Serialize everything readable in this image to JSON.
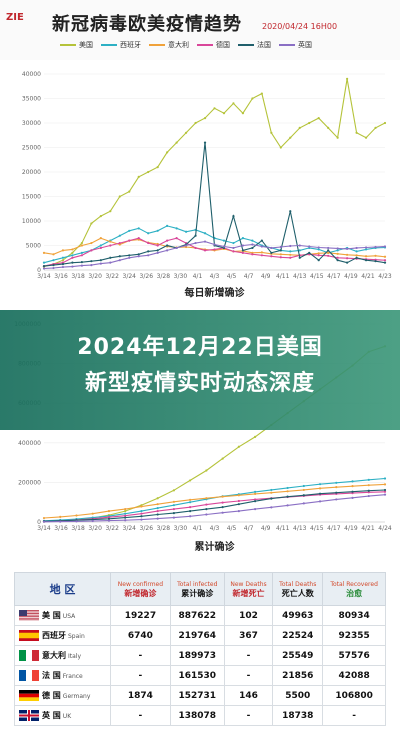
{
  "header": {
    "title": "新冠病毒欧美疫情趋势",
    "date": "2020/04/24 16H00",
    "logo_text": "ZIE"
  },
  "legend": [
    {
      "name": "美国",
      "color": "#b5c33a"
    },
    {
      "name": "西班牙",
      "color": "#2db0c4"
    },
    {
      "name": "意大利",
      "color": "#f0a23a"
    },
    {
      "name": "德国",
      "color": "#d9479a"
    },
    {
      "name": "法国",
      "color": "#1f5f6b"
    },
    {
      "name": "英国",
      "color": "#8a6fc4"
    }
  ],
  "banner": {
    "line1": "2024年12月22日美国",
    "line2": "新型疫情实时动态深度"
  },
  "chart_data": [
    {
      "type": "line",
      "title": "每日新增确诊",
      "ylim": [
        0,
        40000
      ],
      "yticks": [
        "0",
        "5000",
        "10000",
        "15000",
        "20000",
        "25000",
        "30000",
        "35000",
        "40000"
      ],
      "xticks": [
        "3/14",
        "3/16",
        "3/18",
        "3/20",
        "3/22",
        "3/24",
        "3/26",
        "3/28",
        "3/30",
        "4/1",
        "4/3",
        "4/5",
        "4/7",
        "4/9",
        "4/11",
        "4/13",
        "4/15",
        "4/17",
        "4/19",
        "4/21",
        "4/23"
      ],
      "series": [
        {
          "name": "美国",
          "color": "#b5c33a",
          "values": [
            700,
            1200,
            2000,
            3500,
            5500,
            9500,
            11000,
            12000,
            15000,
            16000,
            19000,
            20000,
            21000,
            24000,
            26000,
            28000,
            30000,
            31000,
            33000,
            32000,
            34000,
            32000,
            35000,
            36000,
            28000,
            25000,
            27000,
            29000,
            30000,
            31000,
            29000,
            27000,
            39000,
            28000,
            27000,
            29000,
            30000
          ]
        },
        {
          "name": "西班牙",
          "color": "#2db0c4",
          "values": [
            1500,
            2000,
            2500,
            3000,
            3500,
            4000,
            5000,
            6000,
            7000,
            8000,
            8500,
            7500,
            8000,
            9000,
            8500,
            7800,
            8200,
            7500,
            6500,
            6000,
            5500,
            6500,
            6000,
            5000,
            4500,
            4000,
            3800,
            4000,
            4500,
            4200,
            3500,
            4000,
            4500,
            3800,
            4200,
            4500,
            4600
          ]
        },
        {
          "name": "意大利",
          "color": "#f0a23a",
          "values": [
            3500,
            3200,
            4000,
            4200,
            5000,
            5500,
            6500,
            5800,
            5200,
            6000,
            6200,
            5600,
            5300,
            4800,
            4600,
            4700,
            4500,
            4200,
            4000,
            4300,
            3800,
            3900,
            3500,
            3600,
            3300,
            3200,
            3100,
            3000,
            3200,
            3400,
            3500,
            3300,
            3100,
            3000,
            2800,
            2900,
            2700
          ]
        },
        {
          "name": "德国",
          "color": "#d9479a",
          "values": [
            800,
            1200,
            1500,
            2500,
            3000,
            4000,
            4500,
            5000,
            5500,
            6000,
            6500,
            5500,
            5000,
            6000,
            6500,
            5500,
            4500,
            4000,
            4200,
            4500,
            3800,
            3500,
            3200,
            3000,
            2800,
            2600,
            2500,
            3000,
            3200,
            3000,
            2900,
            2500,
            2400,
            2300,
            2200,
            2100,
            2000
          ]
        },
        {
          "name": "法国",
          "color": "#1f5f6b",
          "values": [
            800,
            1000,
            1200,
            1500,
            1600,
            1800,
            2000,
            2500,
            2800,
            3000,
            3200,
            3800,
            4000,
            5000,
            4500,
            5200,
            7000,
            26000,
            5000,
            4500,
            11000,
            4000,
            4500,
            6000,
            3500,
            4000,
            12000,
            2500,
            3500,
            2000,
            4000,
            2000,
            1500,
            2500,
            2000,
            1800,
            1500
          ]
        },
        {
          "name": "英国",
          "color": "#8a6fc4",
          "values": [
            300,
            400,
            600,
            700,
            900,
            1000,
            1300,
            1500,
            2000,
            2500,
            2800,
            3000,
            3500,
            4000,
            4500,
            5000,
            5500,
            5800,
            5200,
            4800,
            4500,
            5000,
            5200,
            4800,
            4500,
            4700,
            4900,
            5000,
            4800,
            4600,
            4500,
            4400,
            4300,
            4500,
            4600,
            4700,
            4800
          ]
        }
      ]
    },
    {
      "type": "line",
      "title": "累计确诊",
      "ylim": [
        0,
        1000000
      ],
      "yticks": [
        "0",
        "200000",
        "400000",
        "600000",
        "800000",
        "1000000"
      ],
      "xticks": [
        "3/14",
        "3/16",
        "3/18",
        "3/20",
        "3/22",
        "3/24",
        "3/26",
        "3/28",
        "3/30",
        "4/1",
        "4/3",
        "4/5",
        "4/7",
        "4/9",
        "4/11",
        "4/13",
        "4/15",
        "4/17",
        "4/19",
        "4/21",
        "4/24"
      ],
      "series": [
        {
          "name": "美国",
          "color": "#b5c33a",
          "values": [
            2000,
            5000,
            10000,
            20000,
            35000,
            55000,
            85000,
            120000,
            160000,
            210000,
            260000,
            320000,
            380000,
            430000,
            490000,
            550000,
            610000,
            670000,
            730000,
            790000,
            860000,
            887622
          ]
        },
        {
          "name": "西班牙",
          "color": "#2db0c4",
          "values": [
            6000,
            10000,
            15000,
            22000,
            30000,
            42000,
            55000,
            70000,
            85000,
            100000,
            115000,
            130000,
            140000,
            152000,
            162000,
            172000,
            182000,
            191000,
            198000,
            205000,
            213000,
            219764
          ]
        },
        {
          "name": "意大利",
          "color": "#f0a23a",
          "values": [
            20000,
            26000,
            33000,
            42000,
            55000,
            65000,
            78000,
            90000,
            102000,
            112000,
            120000,
            128000,
            135000,
            142000,
            148000,
            155000,
            162000,
            170000,
            176000,
            181000,
            186000,
            189973
          ]
        },
        {
          "name": "德国",
          "color": "#d9479a",
          "values": [
            3000,
            6000,
            10000,
            16000,
            24000,
            32000,
            42000,
            55000,
            65000,
            75000,
            88000,
            98000,
            106000,
            114000,
            120000,
            126000,
            132000,
            138000,
            142000,
            146000,
            150000,
            152731
          ]
        },
        {
          "name": "法国",
          "color": "#1f5f6b",
          "values": [
            4000,
            6000,
            9000,
            12000,
            16000,
            22000,
            29000,
            38000,
            45000,
            55000,
            65000,
            75000,
            90000,
            105000,
            118000,
            128000,
            135000,
            143000,
            148000,
            153000,
            158000,
            161530
          ]
        },
        {
          "name": "英国",
          "color": "#8a6fc4",
          "values": [
            1000,
            2000,
            3000,
            5000,
            7000,
            9000,
            12000,
            17000,
            22000,
            29000,
            38000,
            47000,
            55000,
            65000,
            74000,
            84000,
            94000,
            104000,
            114000,
            122000,
            131000,
            138078
          ]
        }
      ]
    }
  ],
  "table": {
    "headers": [
      {
        "zh": "地 区",
        "en": ""
      },
      {
        "en": "New confirmed",
        "zh": "新增确诊",
        "cls": "red"
      },
      {
        "en": "Total infected",
        "zh": "累计确诊",
        "cls": ""
      },
      {
        "en": "New Deaths",
        "zh": "新增死亡",
        "cls": "red"
      },
      {
        "en": "Total Deaths",
        "zh": "死亡人数",
        "cls": ""
      },
      {
        "en": "Total Recovered",
        "zh": "治愈",
        "cls": "green"
      }
    ],
    "rows": [
      {
        "zh": "美 国",
        "en": "USA",
        "flag": "us",
        "new_confirmed": "19227",
        "total": "887622",
        "new_deaths": "102",
        "deaths": "49963",
        "recovered": "80934"
      },
      {
        "zh": "西班牙",
        "en": "Spain",
        "flag": "es",
        "new_confirmed": "6740",
        "total": "219764",
        "new_deaths": "367",
        "deaths": "22524",
        "recovered": "92355"
      },
      {
        "zh": "意大利",
        "en": "Italy",
        "flag": "it",
        "new_confirmed": "-",
        "total": "189973",
        "new_deaths": "-",
        "deaths": "25549",
        "recovered": "57576"
      },
      {
        "zh": "法 国",
        "en": "France",
        "flag": "fr",
        "new_confirmed": "-",
        "total": "161530",
        "new_deaths": "-",
        "deaths": "21856",
        "recovered": "42088"
      },
      {
        "zh": "德 国",
        "en": "Germany",
        "flag": "de",
        "new_confirmed": "1874",
        "total": "152731",
        "new_deaths": "146",
        "deaths": "5500",
        "recovered": "106800"
      },
      {
        "zh": "英 国",
        "en": "UK",
        "flag": "uk",
        "new_confirmed": "-",
        "total": "138078",
        "new_deaths": "-",
        "deaths": "18738",
        "recovered": "-"
      }
    ]
  }
}
